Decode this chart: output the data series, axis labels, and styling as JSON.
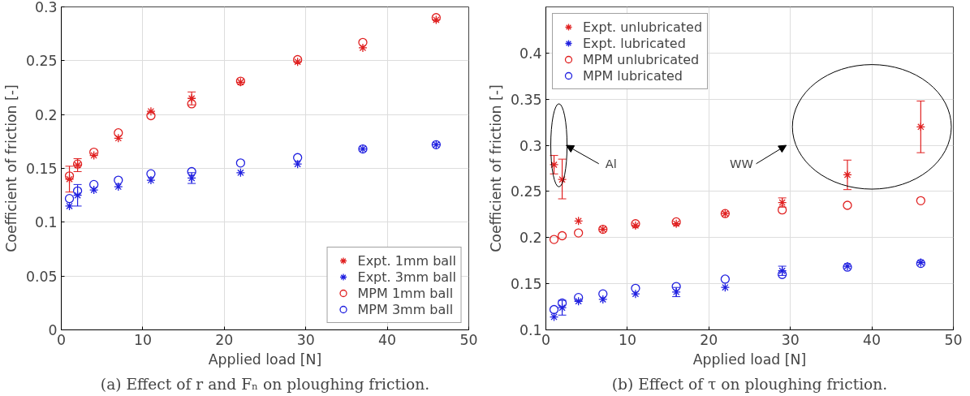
{
  "chart_data": [
    {
      "type": "scatter",
      "xlabel": "Applied load [N]",
      "ylabel": "Coefficient of friction [-]",
      "x": [
        1,
        2,
        4,
        7,
        11,
        16,
        22,
        29,
        37,
        46
      ],
      "xlim": [
        0,
        50
      ],
      "ylim": [
        0,
        0.3
      ],
      "xticks": [
        0,
        10,
        20,
        30,
        40,
        50
      ],
      "yticks": [
        0,
        0.05,
        0.1,
        0.15,
        0.2,
        0.25,
        0.3
      ],
      "grid": true,
      "legend": "bottom right",
      "series": [
        {
          "name": "Expt. 1mm ball",
          "color": "#e02020",
          "marker": "cross",
          "values": [
            0.14,
            0.153,
            0.162,
            0.178,
            0.203,
            0.215,
            0.23,
            0.249,
            0.262,
            0.288
          ],
          "errors": [
            0.012,
            0.006,
            null,
            null,
            null,
            0.006,
            null,
            null,
            null,
            null
          ]
        },
        {
          "name": "Expt. 3mm ball",
          "color": "#2020e0",
          "marker": "cross",
          "values": [
            0.115,
            0.125,
            0.13,
            0.133,
            0.139,
            0.141,
            0.146,
            0.154,
            0.168,
            0.172
          ],
          "errors": [
            null,
            0.01,
            null,
            null,
            null,
            0.005,
            null,
            null,
            null,
            null
          ]
        },
        {
          "name": "MPM 1mm ball",
          "color": "#e02020",
          "marker": "circle",
          "values": [
            0.143,
            0.154,
            0.165,
            0.183,
            0.199,
            0.21,
            0.231,
            0.251,
            0.267,
            0.29
          ]
        },
        {
          "name": "MPM 3mm ball",
          "color": "#2020e0",
          "marker": "circle",
          "values": [
            0.122,
            0.129,
            0.135,
            0.139,
            0.145,
            0.147,
            0.155,
            0.16,
            0.168,
            0.172
          ]
        }
      ],
      "annotations": [
        "(a) Effect of r and Fₙ on ploughing friction."
      ]
    },
    {
      "type": "scatter",
      "xlabel": "Applied load [N]",
      "ylabel": "Coefficient of friction [-]",
      "x": [
        1,
        2,
        4,
        7,
        11,
        16,
        22,
        29,
        37,
        46
      ],
      "xlim": [
        0,
        50
      ],
      "ylim": [
        0.1,
        0.45
      ],
      "xticks": [
        0,
        10,
        20,
        30,
        40,
        50
      ],
      "yticks": [
        0.1,
        0.15,
        0.2,
        0.25,
        0.3,
        0.35,
        0.4
      ],
      "grid": true,
      "legend": "top left",
      "series": [
        {
          "name": "Expt. unlubricated",
          "color": "#e02020",
          "marker": "cross",
          "values": [
            0.279,
            0.263,
            0.218,
            0.209,
            0.213,
            0.215,
            0.226,
            0.238,
            0.268,
            0.32
          ],
          "errors": [
            0.01,
            [
              0.242,
              0.285
            ],
            null,
            null,
            null,
            null,
            null,
            0.005,
            [
              0.252,
              0.284
            ],
            [
              0.292,
              0.348
            ]
          ]
        },
        {
          "name": "Expt. lubricated",
          "color": "#2020e0",
          "marker": "cross",
          "values": [
            0.114,
            0.124,
            0.131,
            0.133,
            0.139,
            0.141,
            0.146,
            0.164,
            0.169,
            0.173
          ],
          "errors": [
            null,
            0.008,
            null,
            null,
            null,
            0.005,
            null,
            0.005,
            null,
            null
          ]
        },
        {
          "name": "MPM unlubricated",
          "color": "#e02020",
          "marker": "circle",
          "values": [
            0.198,
            0.202,
            0.205,
            0.209,
            0.215,
            0.217,
            0.226,
            0.23,
            0.235,
            0.24
          ]
        },
        {
          "name": "MPM lubricated",
          "color": "#2020e0",
          "marker": "circle",
          "values": [
            0.122,
            0.129,
            0.135,
            0.139,
            0.145,
            0.147,
            0.155,
            0.16,
            0.168,
            0.172
          ]
        }
      ],
      "annotations": [
        "Al",
        "WW",
        "(b) Effect of τ on ploughing friction."
      ]
    }
  ]
}
